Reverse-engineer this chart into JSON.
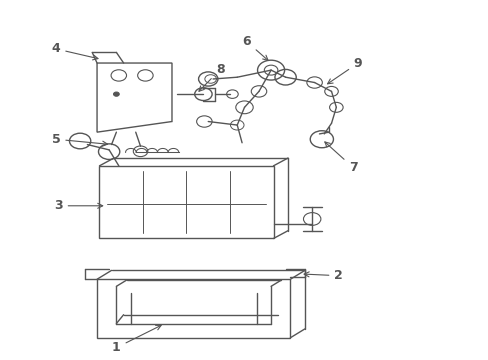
{
  "background_color": "#ffffff",
  "line_color": "#555555",
  "label_color": "#000000",
  "line_width": 1.0,
  "figsize": [
    4.89,
    3.6
  ],
  "dpi": 100
}
